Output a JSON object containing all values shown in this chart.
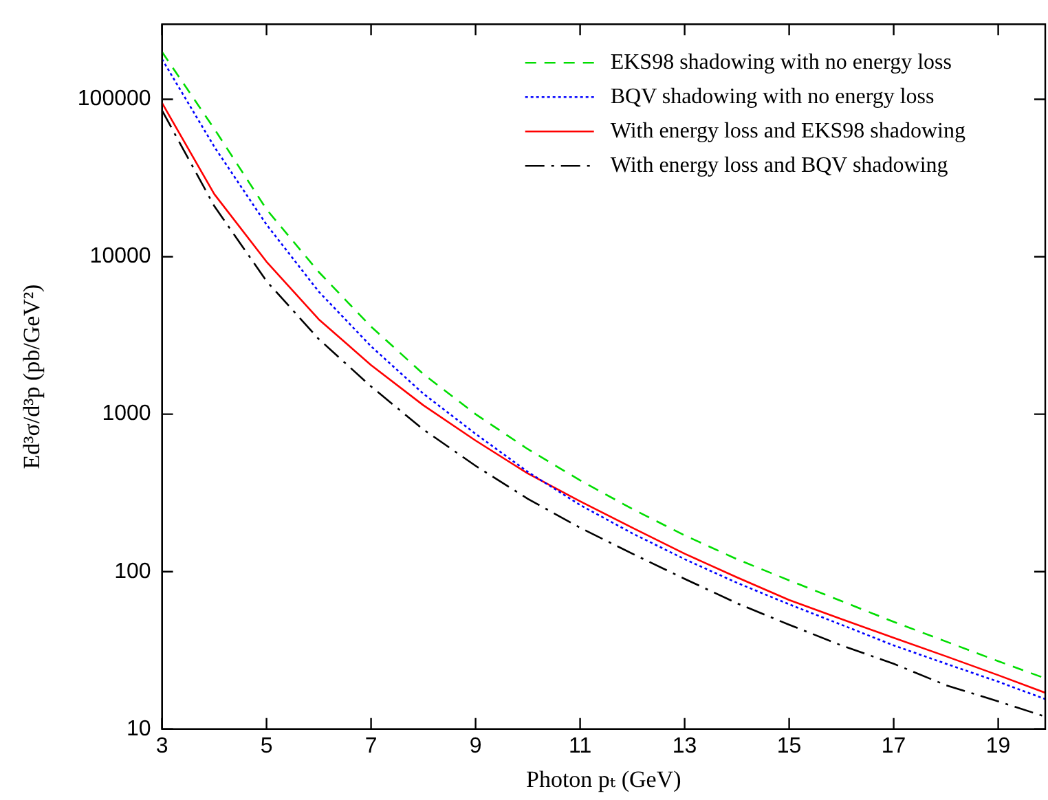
{
  "chart_data": {
    "type": "line",
    "xlabel": "Photon pₜ (GeV)",
    "ylabel": "Ed³σ/d³p (pb/GeV²)",
    "x": [
      3,
      4,
      5,
      6,
      7,
      8,
      9,
      10,
      11,
      12,
      13,
      14,
      15,
      16,
      17,
      18,
      19,
      19.9
    ],
    "series": [
      {
        "name": "EKS98 shadowing with no energy loss",
        "color": "#00dd00",
        "line_style": "dashed",
        "values": [
          200000,
          65000,
          20000,
          8000,
          3600,
          1800,
          1000,
          600,
          380,
          250,
          170,
          120,
          88,
          65,
          48,
          36,
          27,
          21
        ]
      },
      {
        "name": "BQV shadowing with no energy loss",
        "color": "#0000ff",
        "line_style": "dotted",
        "values": [
          180000,
          50000,
          16000,
          6000,
          2700,
          1350,
          750,
          430,
          265,
          175,
          120,
          85,
          62,
          46,
          34,
          26,
          20,
          15.5
        ]
      },
      {
        "name": "With energy loss and EKS98 shadowing",
        "color": "#ff0000",
        "line_style": "solid",
        "values": [
          95000,
          25000,
          9300,
          4000,
          2050,
          1140,
          680,
          420,
          280,
          190,
          130,
          92,
          66,
          50,
          38,
          29,
          22,
          17
        ]
      },
      {
        "name": "With energy loss and BQV shadowing",
        "color": "#000000",
        "line_style": "dashdot",
        "values": [
          85000,
          21000,
          7000,
          3000,
          1500,
          800,
          470,
          290,
          190,
          130,
          90,
          63,
          46,
          34,
          26,
          19,
          15,
          12
        ]
      }
    ],
    "xlim": [
      3,
      19.9
    ],
    "xticks": [
      3,
      5,
      7,
      9,
      11,
      13,
      15,
      17,
      19
    ],
    "ylim": [
      10,
      300000
    ],
    "yticks": [
      10,
      100,
      1000,
      10000,
      100000
    ],
    "log": "y",
    "grid": false,
    "legend": "top right",
    "marker": "none"
  }
}
